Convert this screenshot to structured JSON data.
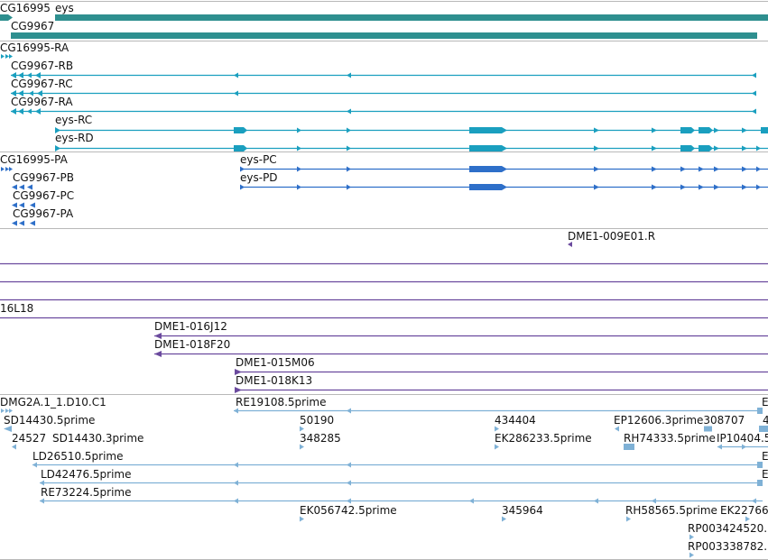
{
  "colors": {
    "gene": "#2e8f8f",
    "rna": "#1a9fbf",
    "protein": "#2e6fc9",
    "clone": "#6b4a9e",
    "est": "#7fb1d6",
    "separator": "#b8b8b8"
  },
  "tracks": {
    "genes": {
      "labels": [
        {
          "id": "g1",
          "text": "CG16995"
        },
        {
          "id": "g2",
          "text": "eys"
        },
        {
          "id": "g3",
          "text": "CG9967"
        }
      ]
    },
    "transcripts": {
      "labels": [
        {
          "id": "t1",
          "text": "CG16995-RA"
        },
        {
          "id": "t2",
          "text": "CG9967-RB"
        },
        {
          "id": "t3",
          "text": "CG9967-RC"
        },
        {
          "id": "t4",
          "text": "CG9967-RA"
        },
        {
          "id": "t5",
          "text": "eys-RC"
        },
        {
          "id": "t6",
          "text": "eys-RD"
        }
      ]
    },
    "proteins": {
      "labels": [
        {
          "id": "p1",
          "text": "CG16995-PA"
        },
        {
          "id": "p2",
          "text": "eys-PC"
        },
        {
          "id": "p3",
          "text": "CG9967-PB"
        },
        {
          "id": "p4",
          "text": "eys-PD"
        },
        {
          "id": "p5",
          "text": "CG9967-PC"
        },
        {
          "id": "p6",
          "text": "CG9967-PA"
        }
      ]
    },
    "probe": {
      "labels": [
        {
          "id": "pr1",
          "text": "DME1-009E01.R"
        }
      ]
    },
    "clones": {
      "labels": [
        {
          "id": "c1",
          "text": "16L18"
        },
        {
          "id": "c2",
          "text": "DME1-016J12"
        },
        {
          "id": "c3",
          "text": "DME1-018F20"
        },
        {
          "id": "c4",
          "text": "DME1-015M06"
        },
        {
          "id": "c5",
          "text": "DME1-018K13"
        }
      ]
    },
    "ests": {
      "labels": [
        {
          "id": "e1",
          "text": "DMG2A.1_1.D10.C1"
        },
        {
          "id": "e2",
          "text": "RE19108.5prime"
        },
        {
          "id": "e3",
          "text": "E"
        },
        {
          "id": "e4",
          "text": "SD14430.5prime"
        },
        {
          "id": "e5",
          "text": "50190"
        },
        {
          "id": "e6",
          "text": "434404"
        },
        {
          "id": "e7",
          "text": "EP12606.3prime308707"
        },
        {
          "id": "e8",
          "text": "4"
        },
        {
          "id": "e9",
          "text": "24527"
        },
        {
          "id": "e10",
          "text": "SD14430.3prime"
        },
        {
          "id": "e11",
          "text": "348285"
        },
        {
          "id": "e12",
          "text": "EK286233.5prime"
        },
        {
          "id": "e13",
          "text": "RH74333.5prime"
        },
        {
          "id": "e14",
          "text": "IP10404.5"
        },
        {
          "id": "e15",
          "text": "LD26510.5prime"
        },
        {
          "id": "e16",
          "text": "E"
        },
        {
          "id": "e17",
          "text": "LD42476.5prime"
        },
        {
          "id": "e18",
          "text": "E"
        },
        {
          "id": "e19",
          "text": "RE73224.5prime"
        },
        {
          "id": "e20",
          "text": "EK056742.5prime"
        },
        {
          "id": "e21",
          "text": "345964"
        },
        {
          "id": "e22",
          "text": "RH58565.5prime"
        },
        {
          "id": "e23",
          "text": "EK22766"
        },
        {
          "id": "e24",
          "text": "RP003424520."
        },
        {
          "id": "e25",
          "text": "RP003338782."
        }
      ]
    }
  }
}
